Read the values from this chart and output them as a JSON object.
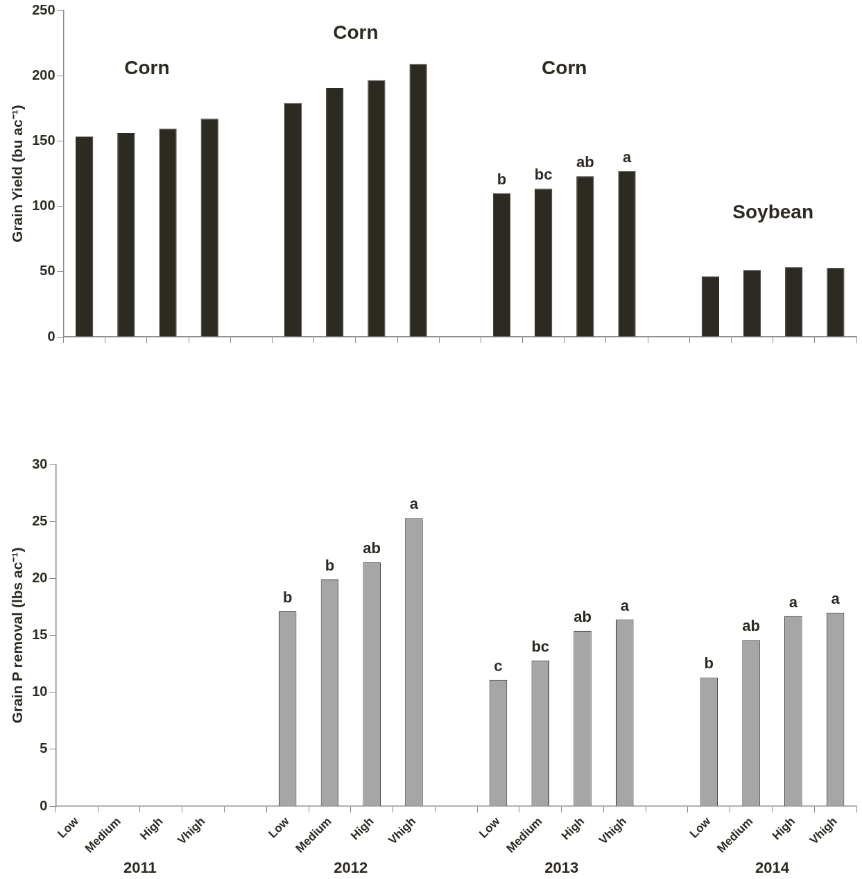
{
  "chart_data": [
    {
      "type": "bar",
      "ylabel": "Grain Yield (bu ac⁻¹)",
      "categories": [
        null,
        null,
        null,
        null,
        null,
        null,
        null,
        null,
        null,
        null,
        null,
        null,
        null,
        null,
        null,
        null,
        null,
        null,
        null
      ],
      "values": [
        153.5,
        156,
        159.5,
        167,
        null,
        179,
        190.5,
        196.5,
        209,
        null,
        110,
        113.5,
        123,
        127,
        null,
        46.5,
        51,
        53.5,
        52.5
      ],
      "value_labels": [
        null,
        null,
        null,
        null,
        null,
        null,
        null,
        null,
        null,
        null,
        "b",
        "bc",
        "ab",
        "a",
        null,
        null,
        null,
        null,
        null
      ],
      "color": "#2d2a22",
      "ylim": [
        0,
        250
      ],
      "yticks": [
        0,
        50,
        100,
        150,
        200,
        250
      ],
      "grid": false,
      "legend": false,
      "tick_labels": "y",
      "annotations": [
        "Corn",
        "Corn",
        "Corn",
        "Soybean"
      ]
    },
    {
      "type": "bar",
      "ylabel": "Grain P removal (lbs ac⁻¹)",
      "categories": [
        "Low",
        "Medium",
        "High",
        "Vhigh",
        null,
        "Low",
        "Medium",
        "High",
        "Vhigh",
        null,
        "Low",
        "Medium",
        "High",
        "Vhigh",
        null,
        "Low",
        "Medium",
        "High",
        "Vhigh"
      ],
      "values": [
        null,
        null,
        null,
        null,
        null,
        17.1,
        19.9,
        21.4,
        25.3,
        null,
        11.1,
        12.8,
        15.4,
        16.4,
        null,
        11.3,
        14.6,
        16.7,
        17.0
      ],
      "value_labels": [
        null,
        null,
        null,
        null,
        null,
        "b",
        "b",
        "ab",
        "a",
        null,
        "c",
        "bc",
        "ab",
        "a",
        null,
        "b",
        "ab",
        "a",
        "a"
      ],
      "color": "#a6a6a6",
      "ylim": [
        0,
        30
      ],
      "yticks": [
        0,
        5,
        10,
        15,
        20,
        25,
        30
      ],
      "grid": false,
      "legend": false,
      "annotations": [
        "2011",
        "2012",
        "2013",
        "2014"
      ]
    }
  ]
}
